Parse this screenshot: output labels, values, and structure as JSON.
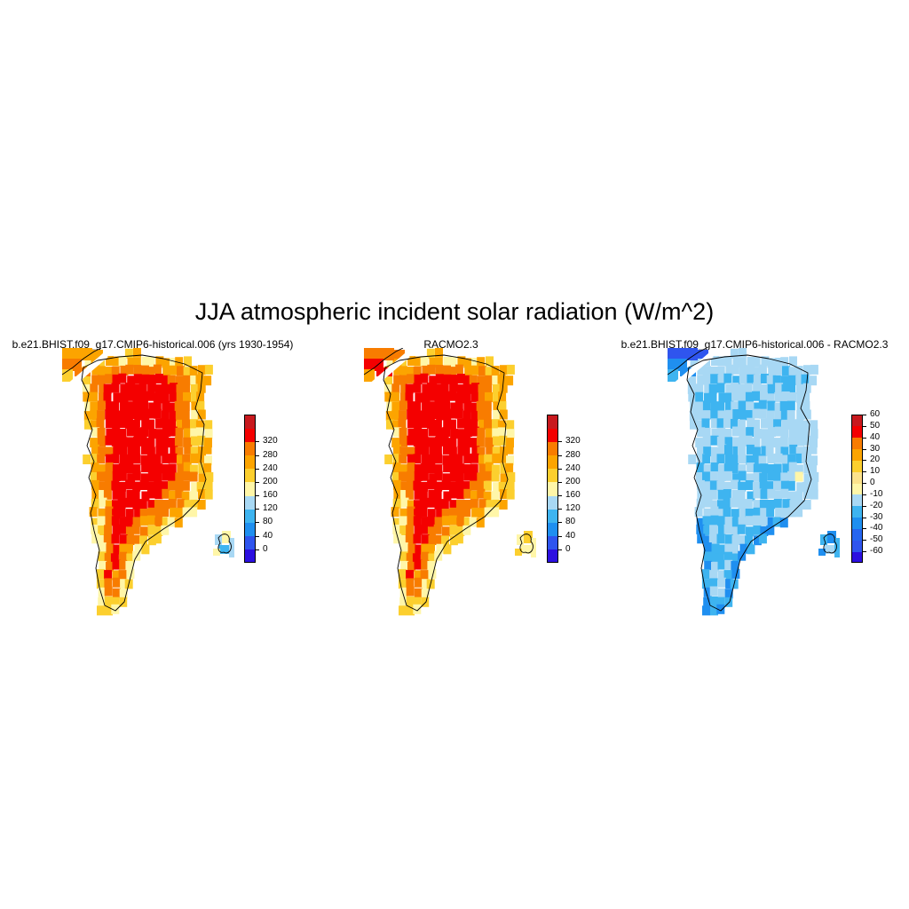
{
  "figure": {
    "title": "JJA atmospheric incident solar radiation (W/m^2)"
  },
  "panels": [
    {
      "title": "b.e21.BHIST.f09_g17.CMIP6-historical.006 (yrs 1930-1954)",
      "variant": "model",
      "colorbar": {
        "colors": [
          "#2c10e0",
          "#2f55ee",
          "#1f8ff0",
          "#3eb4f0",
          "#a8d8f4",
          "#fff6a8",
          "#fccf2e",
          "#fca400",
          "#f87c00",
          "#f40000",
          "#c8191e"
        ],
        "labels": [
          "0",
          "40",
          "80",
          "120",
          "160",
          "200",
          "240",
          "280",
          "320"
        ]
      }
    },
    {
      "title": "RACMO2.3",
      "variant": "obs",
      "colorbar": {
        "colors": [
          "#2c10e0",
          "#2f55ee",
          "#1f8ff0",
          "#3eb4f0",
          "#a8d8f4",
          "#fff6a8",
          "#fccf2e",
          "#fca400",
          "#f87c00",
          "#f40000",
          "#c8191e"
        ],
        "labels": [
          "0",
          "40",
          "80",
          "120",
          "160",
          "200",
          "240",
          "280",
          "320"
        ]
      }
    },
    {
      "title": "b.e21.BHIST.f09_g17.CMIP6-historical.006 - RACMO2.3",
      "variant": "diff",
      "colorbar": {
        "colors": [
          "#2c10e0",
          "#2f55ee",
          "#2566f0",
          "#1f8ff0",
          "#3eb4f0",
          "#a8d8f4",
          "#fff6a8",
          "#fce28c",
          "#fccf2e",
          "#fca400",
          "#f87c00",
          "#f40000",
          "#c8191e"
        ],
        "labels": [
          "-60",
          "-50",
          "-40",
          "-30",
          "-20",
          "-10",
          "0",
          "10",
          "20",
          "30",
          "40",
          "50",
          "60"
        ]
      }
    }
  ]
}
